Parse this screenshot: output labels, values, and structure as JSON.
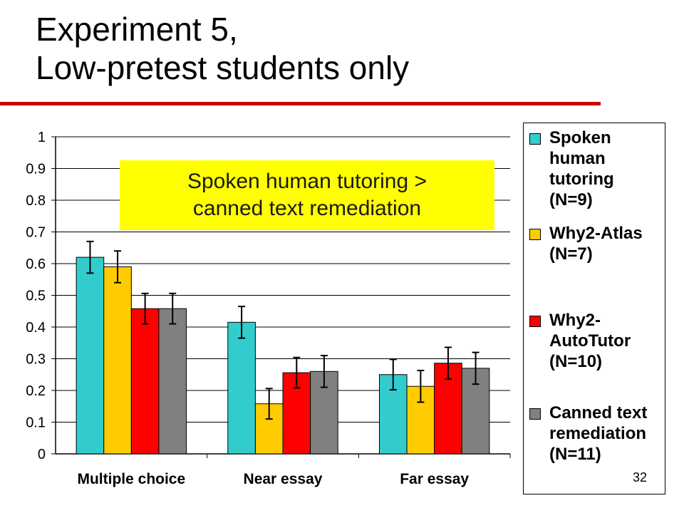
{
  "slide": {
    "title_line1": "Experiment 5,",
    "title_line2": "Low-pretest students only",
    "callout_line1": "Spoken human tutoring >",
    "callout_line2": "canned text remediation",
    "slide_number": "32",
    "accent_color": "#cc0000",
    "callout_color": "#ffff00"
  },
  "chart_data": {
    "type": "bar",
    "title": "",
    "xlabel": "",
    "ylabel": "",
    "ylim": [
      0,
      1
    ],
    "yticks": [
      "0",
      "0.1",
      "0.2",
      "0.3",
      "0.4",
      "0.5",
      "0.6",
      "0.7",
      "0.8",
      "0.9",
      "1"
    ],
    "grid": true,
    "legend_position": "right",
    "categories": [
      "Multiple choice",
      "Near essay",
      "Far essay"
    ],
    "series": [
      {
        "name": "Spoken human tutoring (N=9)",
        "color": "#33cccc",
        "values": [
          0.62,
          0.415,
          0.25
        ],
        "errors": [
          0.05,
          0.05,
          0.048
        ]
      },
      {
        "name": "Why2-Atlas (N=7)",
        "color": "#ffcc00",
        "values": [
          0.59,
          0.158,
          0.213
        ],
        "errors": [
          0.05,
          0.048,
          0.05
        ]
      },
      {
        "name": "Why2-AutoTutor (N=10)",
        "color": "#ff0000",
        "values": [
          0.458,
          0.256,
          0.286
        ],
        "errors": [
          0.048,
          0.048,
          0.05
        ]
      },
      {
        "name": "Canned text remediation (N=11)",
        "color": "#808080",
        "values": [
          0.458,
          0.26,
          0.27
        ],
        "errors": [
          0.048,
          0.05,
          0.05
        ]
      }
    ]
  },
  "legend": [
    {
      "label": "Spoken\nhuman\ntutoring\n(N=9)",
      "color": "#33cccc"
    },
    {
      "label": "Why2-Atlas\n(N=7)",
      "color": "#ffcc00"
    },
    {
      "label": "Why2-\nAutoTutor\n(N=10)",
      "color": "#ff0000"
    },
    {
      "label": "Canned text\nremediation\n(N=11)",
      "color": "#808080"
    }
  ]
}
